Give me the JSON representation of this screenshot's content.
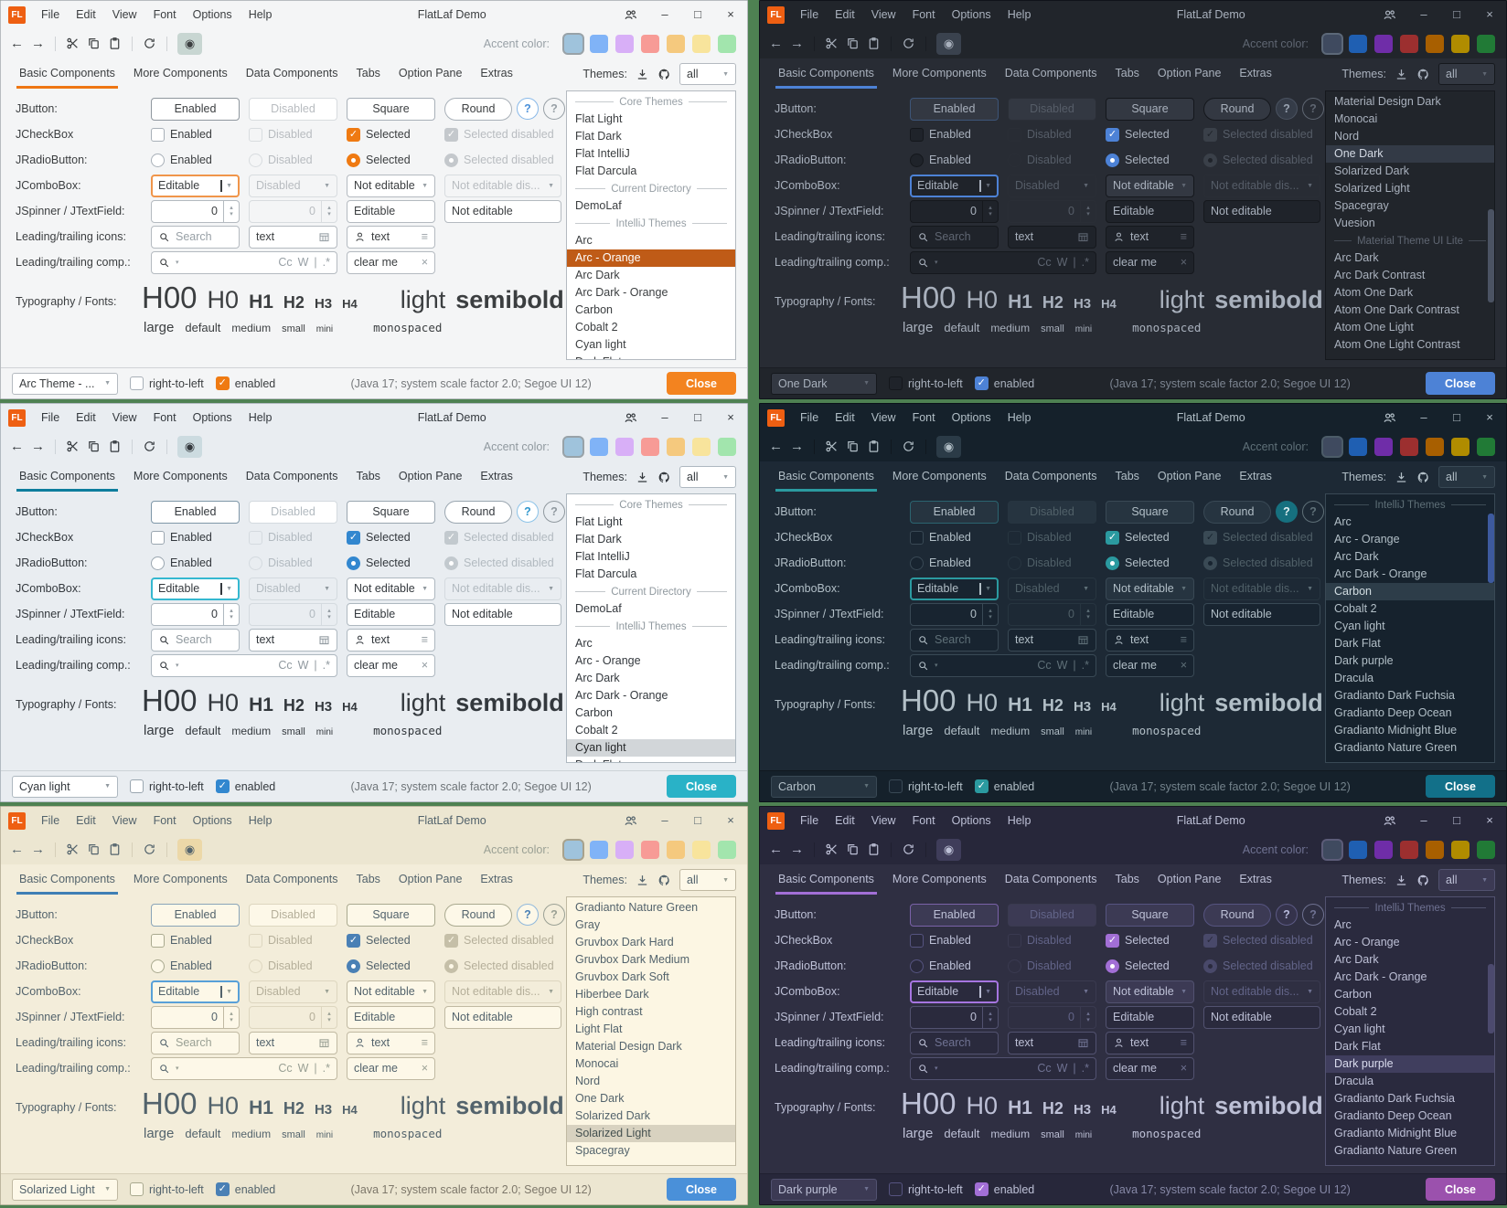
{
  "page": {
    "desktop_background": "#4e8152"
  },
  "shared": {
    "logo_text": "FL",
    "window_title": "FlatLaf Demo",
    "menu": [
      "File",
      "Edit",
      "View",
      "Font",
      "Options",
      "Help"
    ],
    "window_controls": {
      "minimize": "–",
      "maximize": "□",
      "close": "×"
    },
    "toolbar": {
      "back": "←",
      "forward": "→",
      "eye": "◉",
      "accent_label": "Accent color:"
    },
    "tabs": [
      "Basic Components",
      "More Components",
      "Data Components",
      "Tabs",
      "Option Pane",
      "Extras"
    ],
    "themes_panel": {
      "label": "Themes:",
      "filter_value": "all"
    },
    "swatches": {
      "light": [
        "#9fc3dc",
        "#80b3f7",
        "#d8aff7",
        "#f79b96",
        "#f5c97e",
        "#f8e49c",
        "#a2e5ad"
      ],
      "dark": [
        "#3f4a5f",
        "#1f5fb2",
        "#6f2da8",
        "#9c2f2f",
        "#a85f00",
        "#b08c00",
        "#217a36"
      ]
    },
    "glyphs": {
      "combo_arrow": "▼",
      "spin_up": "▴",
      "spin_down": "▾",
      "check": "✓",
      "clear": "×",
      "list": "≡",
      "pipe": "|"
    },
    "rows": {
      "jbutton": {
        "label": "JButton:",
        "enabled": "Enabled",
        "disabled": "Disabled",
        "square": "Square",
        "round": "Round",
        "help": "?"
      },
      "jcheckbox": {
        "label": "JCheckBox",
        "enabled": "Enabled",
        "disabled": "Disabled",
        "selected": "Selected",
        "selected_disabled": "Selected disabled"
      },
      "jradiobutton": {
        "label": "JRadioButton:",
        "enabled": "Enabled",
        "disabled": "Disabled",
        "selected": "Selected",
        "selected_disabled": "Selected disabled"
      },
      "jcombobox": {
        "label": "JComboBox:",
        "editable": "Editable",
        "disabled": "Disabled",
        "not_editable": "Not editable",
        "not_editable_disabled": "Not editable dis..."
      },
      "jspinner": {
        "label": "JSpinner / JTextField:",
        "value": "0",
        "disabled_value": "0",
        "editable": "Editable",
        "not_editable": "Not editable"
      },
      "icons_row": {
        "label": "Leading/trailing icons:",
        "search_placeholder": "Search",
        "text_value": "text"
      },
      "comp_row": {
        "label": "Leading/trailing comp.:",
        "match_case": "Cc",
        "whole_word": "W",
        "regex": ".*",
        "clear_text": "clear me"
      },
      "typography": {
        "label": "Typography / Fonts:",
        "samples": [
          "H00",
          "H0",
          "H1",
          "H2",
          "H3",
          "H4"
        ],
        "light": "light",
        "semibold": "semibold",
        "sizes": [
          "large",
          "default",
          "medium",
          "small",
          "mini"
        ],
        "monospaced": "monospaced"
      }
    },
    "footer": {
      "rtl_label": "right-to-left",
      "enabled_label": "enabled",
      "status": "(Java 17;  system scale factor 2.0; Segoe UI 12)",
      "close_label": "Close"
    }
  },
  "windows": [
    {
      "id": "arc-orange",
      "theme_name": "Arc - Orange",
      "footer_theme": "Arc Theme - ...",
      "swatch_set": "light",
      "scrollbar": null,
      "colors": {
        "winborder": "#b8bcc0",
        "titlebar": "#f4f5f6",
        "bg": "#f4f5f6",
        "footer_bg": "#f4f5f6",
        "fg": "#3b3e40",
        "muted": "#98a0a6",
        "border": "#d0d3d6",
        "input_bg": "#ffffff",
        "input_border": "#b4bac0",
        "btn_bg": "#ffffff",
        "btn_border": "#a8b0b8",
        "primary_border": "#8f979e",
        "dis_border": "#d8dcdf",
        "dis_fg": "#b8bcc0",
        "dis_check": "#c4c8cc",
        "accent": "#ee7613",
        "check": "#ef7a12",
        "focus": "#f0954a",
        "close_bg": "#f3831f",
        "sel_bg": "#bf5b17",
        "sel_fg": "#ffffff",
        "list_bg": "#ffffff",
        "eye_bg": "#c8d6d2",
        "help_bg": "#ffffff",
        "help_fg": "#4a90d9",
        "help_border": "#88b8e8",
        "status": "#76797c",
        "thumb": "#c0c4c8",
        "swatch_ring": "#98a2a8"
      },
      "list": [
        {
          "type": "separator",
          "label": "Core Themes"
        },
        {
          "label": "Flat Light"
        },
        {
          "label": "Flat Dark"
        },
        {
          "label": "Flat IntelliJ"
        },
        {
          "label": "Flat Darcula"
        },
        {
          "type": "separator",
          "label": "Current Directory"
        },
        {
          "label": "DemoLaf"
        },
        {
          "type": "separator",
          "label": "IntelliJ Themes"
        },
        {
          "label": "Arc"
        },
        {
          "label": "Arc - Orange",
          "selected": true
        },
        {
          "label": "Arc Dark"
        },
        {
          "label": "Arc Dark - Orange"
        },
        {
          "label": "Carbon"
        },
        {
          "label": "Cobalt 2"
        },
        {
          "label": "Cyan light"
        },
        {
          "label": "Dark Flat"
        }
      ]
    },
    {
      "id": "one-dark",
      "theme_name": "One Dark",
      "footer_theme": "One Dark",
      "swatch_set": "dark",
      "scrollbar": {
        "top_pct": 44,
        "height_pct": 35
      },
      "colors": {
        "winborder": "#10131a",
        "titlebar": "#21252b",
        "bg": "#282c34",
        "footer_bg": "#21252b",
        "fg": "#a9b1bd",
        "muted": "#5f6672",
        "border": "#1a1d23",
        "input_bg": "#1f232a",
        "input_border": "#15181d",
        "btn_bg": "#333842",
        "btn_border": "#14171c",
        "primary_border": "#3d5578",
        "dis_border": "#2a2e36",
        "dis_fg": "#565d68",
        "dis_check": "#3a4049",
        "accent": "#4d82d6",
        "check": "#4d82d6",
        "focus": "#4d82d6",
        "close_bg": "#4d82d6",
        "sel_bg": "#333a46",
        "sel_fg": "#d4dae4",
        "list_bg": "#21252b",
        "eye_bg": "#3a424e",
        "help_bg": "#353c48",
        "help_fg": "#9aa4b2",
        "help_border": "#4a5260",
        "status": "#7c8490",
        "thumb": "#4b5363",
        "swatch_ring": "#5c6878"
      },
      "list": [
        {
          "label": "Material Design Dark"
        },
        {
          "label": "Monocai"
        },
        {
          "label": "Nord"
        },
        {
          "label": "One Dark",
          "selected": true
        },
        {
          "label": "Solarized Dark"
        },
        {
          "label": "Solarized Light"
        },
        {
          "label": "Spacegray"
        },
        {
          "label": "Vuesion"
        },
        {
          "type": "separator",
          "label": "Material Theme UI Lite"
        },
        {
          "label": "Arc Dark"
        },
        {
          "label": "Arc Dark Contrast"
        },
        {
          "label": "Atom One Dark"
        },
        {
          "label": "Atom One Dark Contrast"
        },
        {
          "label": "Atom One Light"
        },
        {
          "label": "Atom One Light Contrast"
        }
      ]
    },
    {
      "id": "cyan-light",
      "theme_name": "Cyan light",
      "footer_theme": "Cyan light",
      "swatch_set": "light",
      "scrollbar": null,
      "colors": {
        "winborder": "#b2bac2",
        "titlebar": "#e9edf1",
        "bg": "#e9edf1",
        "footer_bg": "#e9edf1",
        "fg": "#33383d",
        "muted": "#90999f",
        "border": "#cdd3d8",
        "input_bg": "#ffffff",
        "input_border": "#aeb8c0",
        "btn_bg": "#ffffff",
        "btn_border": "#9aa6b0",
        "primary_border": "#7f97a8",
        "dis_border": "#d4dadf",
        "dis_fg": "#b2bac0",
        "dis_check": "#c2c9ce",
        "accent": "#0e7d9d",
        "check": "#3287cf",
        "focus": "#35b8d0",
        "close_bg": "#29b2c7",
        "sel_bg": "#d2d6d9",
        "sel_fg": "#26282a",
        "list_bg": "#ffffff",
        "eye_bg": "#ccdbe0",
        "help_bg": "#ffffff",
        "help_fg": "#2f96cd",
        "help_border": "#8cc3e8",
        "status": "#6e7478",
        "thumb": "#c0c8ce",
        "swatch_ring": "#98a2a8"
      },
      "list": [
        {
          "type": "separator",
          "label": "Core Themes"
        },
        {
          "label": "Flat Light"
        },
        {
          "label": "Flat Dark"
        },
        {
          "label": "Flat IntelliJ"
        },
        {
          "label": "Flat Darcula"
        },
        {
          "type": "separator",
          "label": "Current Directory"
        },
        {
          "label": "DemoLaf"
        },
        {
          "type": "separator",
          "label": "IntelliJ Themes"
        },
        {
          "label": "Arc"
        },
        {
          "label": "Arc - Orange"
        },
        {
          "label": "Arc Dark"
        },
        {
          "label": "Arc Dark - Orange"
        },
        {
          "label": "Carbon"
        },
        {
          "label": "Cobalt 2"
        },
        {
          "label": "Cyan light",
          "selected": true
        },
        {
          "label": "Dark Flat"
        }
      ]
    },
    {
      "id": "carbon",
      "theme_name": "Carbon",
      "footer_theme": "Carbon",
      "swatch_set": "dark",
      "scrollbar": {
        "top_pct": 7,
        "height_pct": 26
      },
      "colors": {
        "winborder": "#0a1118",
        "titlebar": "#15212b",
        "bg": "#1d2935",
        "footer_bg": "#15212b",
        "fg": "#b2bfc7",
        "muted": "#5f7078",
        "border": "#10181f",
        "input_bg": "#182430",
        "input_border": "#394955",
        "btn_bg": "#263440",
        "btn_border": "#394955",
        "primary_border": "#2b6470",
        "dis_border": "#273540",
        "dis_fg": "#506068",
        "dis_check": "#3a4a55",
        "accent": "#2b9aa0",
        "check": "#2b9aa0",
        "focus": "#2b9aa0",
        "close_bg": "#127089",
        "sel_bg": "#2d3d49",
        "sel_fg": "#d2dde2",
        "list_bg": "#16222d",
        "eye_bg": "#2b3b47",
        "help_bg": "#16707f",
        "help_fg": "#e2f0f2",
        "help_border": "#16707f",
        "status": "#74838c",
        "thumb": "#3d5a9e",
        "swatch_ring": "#4c5c68"
      },
      "list": [
        {
          "type": "separator",
          "label": "IntelliJ Themes"
        },
        {
          "label": "Arc"
        },
        {
          "label": "Arc - Orange"
        },
        {
          "label": "Arc Dark"
        },
        {
          "label": "Arc Dark - Orange"
        },
        {
          "label": "Carbon",
          "selected": true
        },
        {
          "label": "Cobalt 2"
        },
        {
          "label": "Cyan light"
        },
        {
          "label": "Dark Flat"
        },
        {
          "label": "Dark purple"
        },
        {
          "label": "Dracula"
        },
        {
          "label": "Gradianto Dark Fuchsia"
        },
        {
          "label": "Gradianto Deep Ocean"
        },
        {
          "label": "Gradianto Midnight Blue"
        },
        {
          "label": "Gradianto Nature Green"
        }
      ]
    },
    {
      "id": "solarized-light",
      "theme_name": "Solarized Light",
      "footer_theme": "Solarized Light",
      "swatch_set": "light",
      "scrollbar": null,
      "colors": {
        "winborder": "#beb7a0",
        "titlebar": "#ece6d1",
        "bg": "#f3edda",
        "footer_bg": "#ece6d1",
        "fg": "#53636c",
        "muted": "#9aa094",
        "border": "#d6cfb8",
        "input_bg": "#fdf8e8",
        "input_border": "#c0b9a2",
        "btn_bg": "#fdf8e8",
        "btn_border": "#a9a98f",
        "primary_border": "#8aa4b8",
        "dis_border": "#ddd6bf",
        "dis_fg": "#b5af9a",
        "dis_check": "#c5bfa8",
        "accent": "#3f7fb5",
        "check": "#4a80b5",
        "focus": "#58a0d8",
        "close_bg": "#4a90d9",
        "sel_bg": "#d8d2c0",
        "sel_fg": "#44504f",
        "list_bg": "#fcf6e3",
        "eye_bg": "#ecd8a8",
        "help_bg": "#fdf8e8",
        "help_fg": "#4a80b5",
        "help_border": "#90b8dc",
        "status": "#7d776a",
        "thumb": "#ccc5ae",
        "swatch_ring": "#a8a28c"
      },
      "list": [
        {
          "label": "Gradianto Nature Green"
        },
        {
          "label": "Gray"
        },
        {
          "label": "Gruvbox Dark Hard"
        },
        {
          "label": "Gruvbox Dark Medium"
        },
        {
          "label": "Gruvbox Dark Soft"
        },
        {
          "label": "Hiberbee Dark"
        },
        {
          "label": "High contrast"
        },
        {
          "label": "Light Flat"
        },
        {
          "label": "Material Design Dark"
        },
        {
          "label": "Monocai"
        },
        {
          "label": "Nord"
        },
        {
          "label": "One Dark"
        },
        {
          "label": "Solarized Dark"
        },
        {
          "label": "Solarized Light",
          "selected": true
        },
        {
          "label": "Spacegray"
        }
      ]
    },
    {
      "id": "dark-purple",
      "theme_name": "Dark purple",
      "footer_theme": "Dark purple",
      "swatch_set": "dark",
      "scrollbar": {
        "top_pct": 25,
        "height_pct": 26
      },
      "colors": {
        "winborder": "#16161f",
        "titlebar": "#27273a",
        "bg": "#2f2f42",
        "footer_bg": "#27273a",
        "fg": "#bdc0d6",
        "muted": "#6f7292",
        "border": "#202030",
        "input_bg": "#2a2a3d",
        "input_border": "#525270",
        "btn_bg": "#3c3a54",
        "btn_border": "#565480",
        "primary_border": "#7a62a8",
        "dis_border": "#3a3a50",
        "dis_fg": "#626488",
        "dis_check": "#49496a",
        "accent": "#a26fd6",
        "check": "#a26fd6",
        "focus": "#a675e0",
        "close_bg": "#9b51ad",
        "sel_bg": "#403e5e",
        "sel_fg": "#dadcee",
        "list_bg": "#2a2a3e",
        "eye_bg": "#3f3d5a",
        "help_bg": "#35334c",
        "help_fg": "#b8badc",
        "help_border": "#5c5a84",
        "status": "#8688a6",
        "thumb": "#4c4a6e",
        "swatch_ring": "#5c5c78"
      },
      "list": [
        {
          "type": "separator",
          "label": "IntelliJ Themes"
        },
        {
          "label": "Arc"
        },
        {
          "label": "Arc - Orange"
        },
        {
          "label": "Arc Dark"
        },
        {
          "label": "Arc Dark - Orange"
        },
        {
          "label": "Carbon"
        },
        {
          "label": "Cobalt 2"
        },
        {
          "label": "Cyan light"
        },
        {
          "label": "Dark Flat"
        },
        {
          "label": "Dark purple",
          "selected": true
        },
        {
          "label": "Dracula"
        },
        {
          "label": "Gradianto Dark Fuchsia"
        },
        {
          "label": "Gradianto Deep Ocean"
        },
        {
          "label": "Gradianto Midnight Blue"
        },
        {
          "label": "Gradianto Nature Green"
        }
      ]
    }
  ]
}
